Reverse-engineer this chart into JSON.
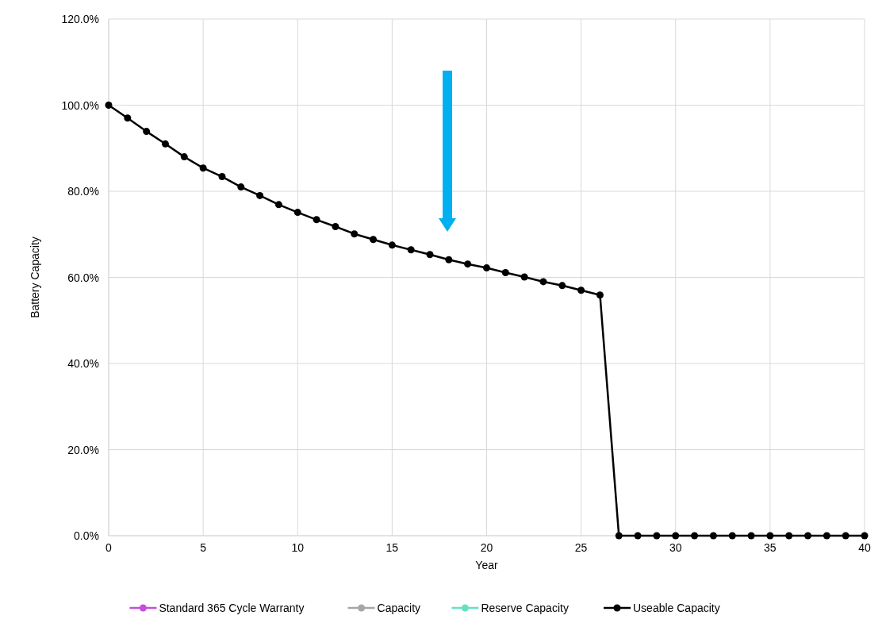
{
  "chart_data": {
    "type": "line",
    "xlabel": "Year",
    "ylabel": "Battery Capacity",
    "x": [
      0,
      1,
      2,
      3,
      4,
      5,
      6,
      7,
      8,
      9,
      10,
      11,
      12,
      13,
      14,
      15,
      16,
      17,
      18,
      19,
      20,
      21,
      22,
      23,
      24,
      25,
      26,
      27,
      28,
      29,
      30,
      31,
      32,
      33,
      34,
      35,
      36,
      37,
      38,
      39,
      40
    ],
    "series": [
      {
        "name": "Standard 365 Cycle Warranty",
        "color": "#c34fdc",
        "values": [
          null,
          null,
          null,
          null,
          null,
          null,
          null,
          null,
          null,
          null,
          null,
          null,
          null,
          null,
          null,
          null,
          null,
          null,
          null,
          null,
          null,
          null,
          null,
          null,
          null,
          null,
          null,
          null,
          null,
          null,
          null,
          null,
          null,
          null,
          null,
          null,
          null,
          null,
          null,
          null,
          null
        ]
      },
      {
        "name": "Capacity",
        "color": "#a6a6a6",
        "values": [
          null,
          null,
          null,
          null,
          null,
          null,
          null,
          null,
          null,
          null,
          null,
          null,
          null,
          null,
          null,
          null,
          null,
          null,
          null,
          null,
          null,
          null,
          null,
          null,
          null,
          null,
          null,
          null,
          null,
          null,
          null,
          null,
          null,
          null,
          null,
          null,
          null,
          null,
          null,
          null,
          null
        ]
      },
      {
        "name": "Reserve Capacity",
        "color": "#66e0c4",
        "values": [
          null,
          null,
          null,
          null,
          null,
          null,
          null,
          null,
          null,
          null,
          null,
          null,
          null,
          null,
          null,
          null,
          null,
          null,
          null,
          null,
          null,
          null,
          null,
          null,
          null,
          null,
          null,
          null,
          null,
          null,
          null,
          null,
          null,
          null,
          null,
          null,
          null,
          null,
          null,
          null,
          null
        ]
      },
      {
        "name": "Useable Capacity",
        "color": "#000000",
        "values": [
          100,
          97.0,
          93.9,
          91.0,
          88.0,
          85.4,
          83.4,
          81.0,
          79.0,
          76.9,
          75.1,
          73.4,
          71.8,
          70.1,
          68.8,
          67.5,
          66.4,
          65.3,
          64.1,
          63.1,
          62.2,
          61.1,
          60.1,
          59.0,
          58.1,
          57.0,
          55.9,
          0,
          0,
          0,
          0,
          0,
          0,
          0,
          0,
          0,
          0,
          0,
          0,
          0,
          0
        ]
      }
    ],
    "xlim": [
      0,
      40
    ],
    "xticks": [
      0,
      5,
      10,
      15,
      20,
      25,
      30,
      35,
      40
    ],
    "ylim": [
      0,
      120
    ],
    "yticks": [
      {
        "value": 0,
        "label": "0.0%"
      },
      {
        "value": 20,
        "label": "20.0%"
      },
      {
        "value": 40,
        "label": "40.0%"
      },
      {
        "value": 60,
        "label": "60.0%"
      },
      {
        "value": 80,
        "label": "80.0%"
      },
      {
        "value": 100,
        "label": "100.0%"
      },
      {
        "value": 120,
        "label": "120.0%"
      }
    ],
    "grid": true,
    "legend": "bottom",
    "marker": "circle",
    "line_style": "solid"
  }
}
